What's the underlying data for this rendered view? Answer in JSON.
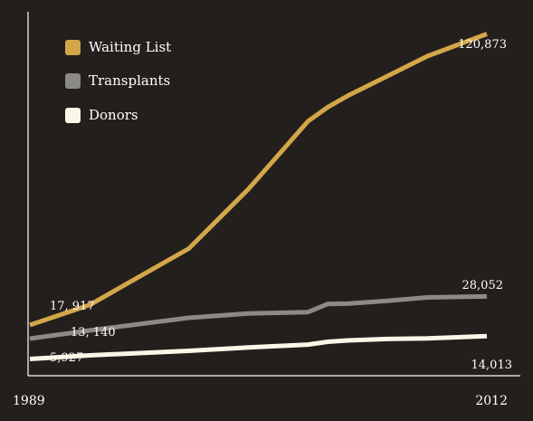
{
  "chart_data": {
    "type": "line",
    "x": [
      1989,
      1992,
      1997,
      2000,
      2003,
      2004,
      2005,
      2007,
      2009,
      2012
    ],
    "x_range": [
      1989,
      2012
    ],
    "ylim": [
      0,
      130000
    ],
    "x_tick_labels": [
      "1989",
      "2012"
    ],
    "grid": false,
    "legend_position": "top-left",
    "series": [
      {
        "name": "Waiting List",
        "color": "#d4a64a",
        "values": [
          17917,
          25000,
          45000,
          66000,
          90000,
          95000,
          99000,
          106000,
          113000,
          120873
        ]
      },
      {
        "name": "Transplants",
        "color": "#8c8a87",
        "values": [
          13140,
          16000,
          20500,
          22000,
          22500,
          25400,
          25500,
          26500,
          27700,
          28052
        ]
      },
      {
        "name": "Donors",
        "color": "#fbf7e8",
        "values": [
          5927,
          7200,
          8800,
          10000,
          11000,
          12000,
          12500,
          13000,
          13200,
          14013
        ]
      }
    ],
    "data_labels": [
      {
        "series": "Waiting List",
        "text": "17, 917"
      },
      {
        "series": "Waiting List",
        "text": "120,873"
      },
      {
        "series": "Transplants",
        "text": "13, 140"
      },
      {
        "series": "Transplants",
        "text": "28,052"
      },
      {
        "series": "Donors",
        "text": "5,927"
      },
      {
        "series": "Donors",
        "text": "14,013"
      }
    ]
  }
}
